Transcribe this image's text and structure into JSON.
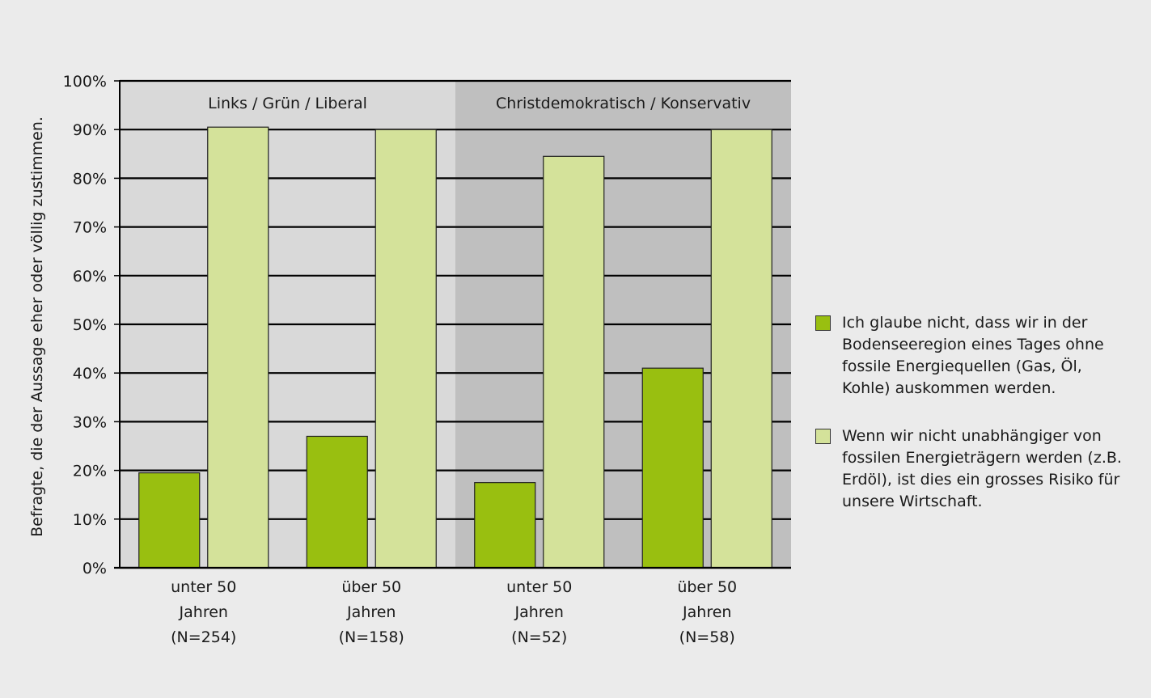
{
  "chart_data": {
    "type": "bar",
    "ylabel": "Befragte, die der Aussage eher oder völlig zustimmen.",
    "ylim": [
      0,
      100
    ],
    "yticks": [
      0,
      10,
      20,
      30,
      40,
      50,
      60,
      70,
      80,
      90,
      100
    ],
    "ytick_labels": [
      "0%",
      "10%",
      "20%",
      "30%",
      "40%",
      "50%",
      "60%",
      "70%",
      "80%",
      "90%",
      "100%"
    ],
    "groups": [
      {
        "label": "Links / Grün / Liberal",
        "background": "#d9d9d9"
      },
      {
        "label": "Christdemokratisch / Konservativ",
        "background": "#bfbfbf"
      }
    ],
    "categories": [
      {
        "lines": [
          "unter 50",
          "Jahren",
          "(N=254)"
        ],
        "group": 0
      },
      {
        "lines": [
          "über 50",
          "Jahren",
          "(N=158)"
        ],
        "group": 0
      },
      {
        "lines": [
          "unter 50",
          "Jahren",
          "(N=52)"
        ],
        "group": 1
      },
      {
        "lines": [
          "über 50",
          "Jahren",
          "(N=58)"
        ],
        "group": 1
      }
    ],
    "series": [
      {
        "name": "Ich glaube nicht, dass wir in der Bodenseeregion eines Tages ohne fossile Energiequellen (Gas, Öl, Kohle) auskommen werden.",
        "color": "#99bf10",
        "values": [
          19.5,
          27,
          17.5,
          41
        ]
      },
      {
        "name": "Wenn wir nicht unabhängiger von fossilen Energieträgern werden (z.B. Erdöl), ist dies ein grosses Risiko für unsere Wirtschaft.",
        "color": "#d4e29a",
        "values": [
          90.5,
          90,
          84.5,
          90
        ]
      }
    ],
    "grid": true,
    "legend": "right"
  }
}
